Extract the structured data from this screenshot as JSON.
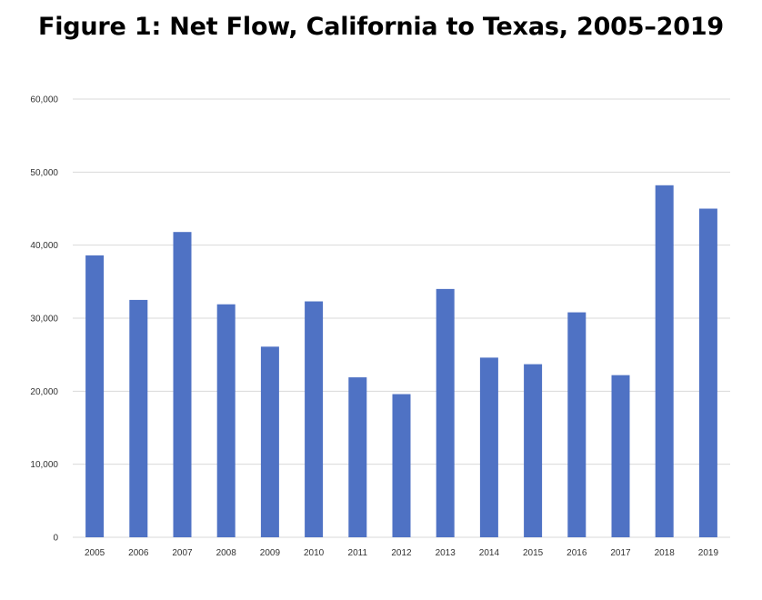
{
  "chart_data": {
    "type": "bar",
    "title": "Figure 1: Net Flow, California to Texas, 2005–2019",
    "xlabel": "",
    "ylabel": "",
    "categories": [
      "2005",
      "2006",
      "2007",
      "2008",
      "2009",
      "2010",
      "2011",
      "2012",
      "2013",
      "2014",
      "2015",
      "2016",
      "2017",
      "2018",
      "2019"
    ],
    "values": [
      38600,
      32500,
      41800,
      31900,
      26100,
      32300,
      21900,
      19600,
      34000,
      24600,
      23700,
      30800,
      22200,
      48200,
      45000
    ],
    "ylim": [
      0,
      60000
    ],
    "yticks": [
      0,
      10000,
      20000,
      30000,
      40000,
      50000,
      60000
    ],
    "ytick_labels": [
      "0",
      "10,000",
      "20,000",
      "30,000",
      "40,000",
      "50,000",
      "60,000"
    ],
    "grid": true,
    "legend": "none",
    "bar_color": "#4f72c4",
    "grid_color": "#d9d9d9"
  }
}
